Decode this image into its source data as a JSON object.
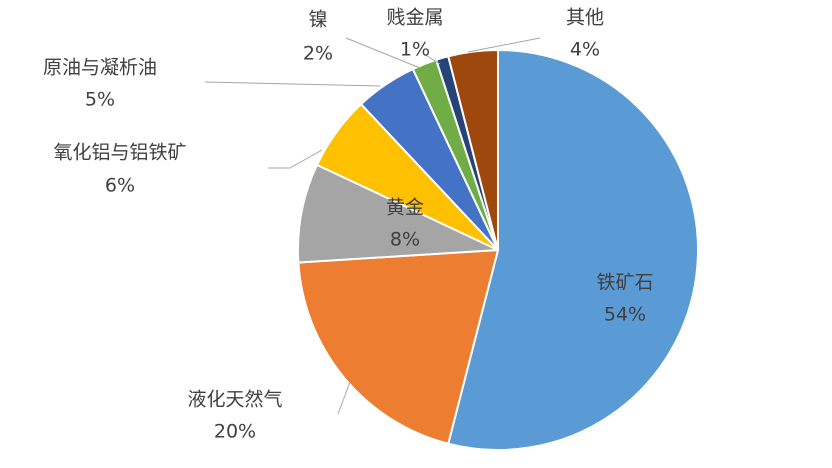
{
  "chart_data": {
    "type": "pie",
    "categories": [
      "铁矿石",
      "液化天然气",
      "黄金",
      "氧化铝与铝铁矿",
      "原油与凝析油",
      "镍",
      "贱金属",
      "其他"
    ],
    "values": [
      54,
      20,
      8,
      6,
      5,
      2,
      1,
      4
    ],
    "value_labels": [
      "54%",
      "20%",
      "8%",
      "6%",
      "5%",
      "2%",
      "1%",
      "4%"
    ],
    "colors": [
      "#5b9bd5",
      "#ed7d31",
      "#a5a5a5",
      "#ffc000",
      "#4472c4",
      "#70ad47",
      "#264478",
      "#9e480e"
    ]
  }
}
